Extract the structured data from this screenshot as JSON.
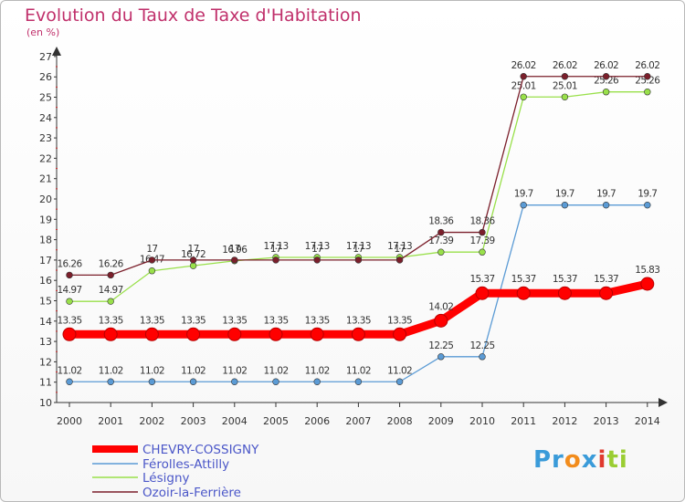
{
  "chart_data": {
    "type": "line",
    "title": "Evolution du Taux de Taxe d'Habitation",
    "subtitle": "(en %)",
    "x": [
      "2000",
      "2001",
      "2002",
      "2003",
      "2004",
      "2005",
      "2006",
      "2007",
      "2008",
      "2009",
      "2010",
      "2011",
      "2012",
      "2013",
      "2014"
    ],
    "ylim": [
      10,
      27
    ],
    "yticks": [
      "10",
      "11",
      "12",
      "13",
      "14",
      "15",
      "16",
      "17",
      "18",
      "19",
      "20",
      "21",
      "22",
      "23",
      "24",
      "25",
      "26",
      "27"
    ],
    "grid": false,
    "legend_position": "bottom-left",
    "series": [
      {
        "name": "CHEVRY-COSSIGNY",
        "color": "#ff0000",
        "values": [
          13.35,
          13.35,
          13.35,
          13.35,
          13.35,
          13.35,
          13.35,
          13.35,
          13.35,
          14.02,
          15.37,
          15.37,
          15.37,
          15.37,
          15.83
        ],
        "labels": [
          "13.35",
          "13.35",
          "13.35",
          "13.35",
          "13.35",
          "13.35",
          "13.35",
          "13.35",
          "13.35",
          "14.02",
          "15.37",
          "15.37",
          "15.37",
          "15.37",
          "15.83"
        ]
      },
      {
        "name": "Férolles-Attilly",
        "color": "#5b9bd5",
        "values": [
          11.02,
          11.02,
          11.02,
          11.02,
          11.02,
          11.02,
          11.02,
          11.02,
          11.02,
          12.25,
          12.25,
          19.7,
          19.7,
          19.7,
          19.7
        ],
        "labels": [
          "11.02",
          "11.02",
          "11.02",
          "11.02",
          "11.02",
          "11.02",
          "11.02",
          "11.02",
          "11.02",
          "12.25",
          "12.25",
          "19.7",
          "19.7",
          "19.7",
          "19.7"
        ]
      },
      {
        "name": "Lésigny",
        "color": "#99e04a",
        "values": [
          14.97,
          14.97,
          16.47,
          16.72,
          16.96,
          17.13,
          17.13,
          17.13,
          17.13,
          17.39,
          17.39,
          25.01,
          25.01,
          25.26,
          25.26
        ],
        "labels": [
          "14.97",
          "14.97",
          "16.47",
          "16.72",
          "16.96",
          "17.13",
          "17.13",
          "17.13",
          "17.13",
          "17.39",
          "17.39",
          "25.01",
          "25.01",
          "25.26",
          "25.26"
        ]
      },
      {
        "name": "Ozoir-la-Ferrière",
        "color": "#7b1f2b",
        "values": [
          16.26,
          16.26,
          17,
          17,
          17,
          17,
          17,
          17,
          17,
          18.36,
          18.36,
          26.02,
          26.02,
          26.02,
          26.02
        ],
        "labels": [
          "16.26",
          "16.26",
          "17",
          "17",
          "17",
          "17",
          "17",
          "17",
          "17",
          "18.36",
          "18.36",
          "26.02",
          "26.02",
          "26.02",
          "26.02"
        ]
      }
    ]
  },
  "logo": {
    "parts": [
      "Pr",
      "o",
      "x",
      "i",
      "ti"
    ],
    "colors": [
      "#3a9bd9",
      "#f28c1c",
      "#3a9bd9",
      "#e03a2e",
      "#9acd32"
    ]
  }
}
